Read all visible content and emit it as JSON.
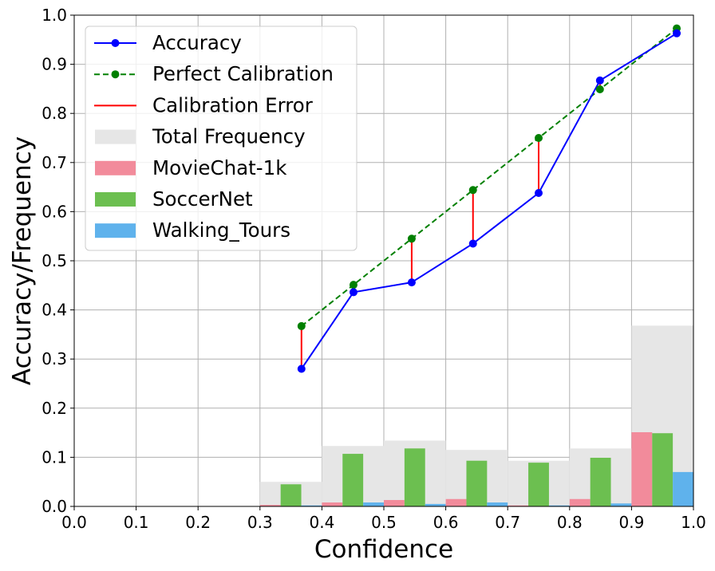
{
  "chart_data": {
    "type": "bar",
    "xlabel": "Confidence",
    "ylabel": "Accuracy/Frequency",
    "xlim": [
      0.0,
      1.0
    ],
    "ylim": [
      0.0,
      1.0
    ],
    "xticks": [
      "0.0",
      "0.1",
      "0.2",
      "0.3",
      "0.4",
      "0.5",
      "0.6",
      "0.7",
      "0.8",
      "0.9",
      "1.0"
    ],
    "yticks": [
      "0.0",
      "0.1",
      "0.2",
      "0.3",
      "0.4",
      "0.5",
      "0.6",
      "0.7",
      "0.8",
      "0.9",
      "1.0"
    ],
    "grid": true,
    "legend_position": "top-left",
    "bins": [
      {
        "range": [
          0.3,
          0.4
        ],
        "total": 0.05,
        "moviechat": 0.003,
        "soccernet": 0.045,
        "walking": 0.002
      },
      {
        "range": [
          0.4,
          0.5
        ],
        "total": 0.123,
        "moviechat": 0.008,
        "soccernet": 0.107,
        "walking": 0.008
      },
      {
        "range": [
          0.5,
          0.6
        ],
        "total": 0.134,
        "moviechat": 0.013,
        "soccernet": 0.118,
        "walking": 0.005
      },
      {
        "range": [
          0.6,
          0.7
        ],
        "total": 0.115,
        "moviechat": 0.015,
        "soccernet": 0.093,
        "walking": 0.008
      },
      {
        "range": [
          0.7,
          0.8
        ],
        "total": 0.093,
        "moviechat": 0.002,
        "soccernet": 0.089,
        "walking": 0.002
      },
      {
        "range": [
          0.8,
          0.9
        ],
        "total": 0.118,
        "moviechat": 0.015,
        "soccernet": 0.099,
        "walking": 0.006
      },
      {
        "range": [
          0.9,
          1.0
        ],
        "total": 0.368,
        "moviechat": 0.151,
        "soccernet": 0.149,
        "walking": 0.07
      }
    ],
    "accuracy": {
      "x": [
        0.367,
        0.451,
        0.545,
        0.644,
        0.75,
        0.849,
        0.973
      ],
      "y": [
        0.28,
        0.436,
        0.456,
        0.535,
        0.638,
        0.867,
        0.963
      ]
    },
    "perfect_calibration": {
      "x": [
        0.367,
        0.451,
        0.545,
        0.644,
        0.75,
        0.849,
        0.973
      ],
      "y": [
        0.367,
        0.451,
        0.545,
        0.644,
        0.75,
        0.849,
        0.973
      ]
    },
    "legend": [
      {
        "label": "Accuracy",
        "kind": "line-marker",
        "color": "#0000ff"
      },
      {
        "label": "Perfect Calibration",
        "kind": "dashed-marker",
        "color": "#008000"
      },
      {
        "label": "Calibration Error",
        "kind": "line",
        "color": "#ff0000"
      },
      {
        "label": "Total Frequency",
        "kind": "patch",
        "color": "#e6e6e6"
      },
      {
        "label": "MovieChat-1k",
        "kind": "patch",
        "color": "#f28b9b"
      },
      {
        "label": "SoccerNet",
        "kind": "patch",
        "color": "#6cbf50"
      },
      {
        "label": "Walking_Tours",
        "kind": "patch",
        "color": "#5fb2ec"
      }
    ],
    "colors": {
      "accuracy": "#0000ff",
      "perfect": "#008000",
      "error": "#ff0000",
      "total": "#e6e6e6",
      "moviechat": "#f28b9b",
      "soccernet": "#6cbf50",
      "walking": "#5fb2ec"
    }
  }
}
